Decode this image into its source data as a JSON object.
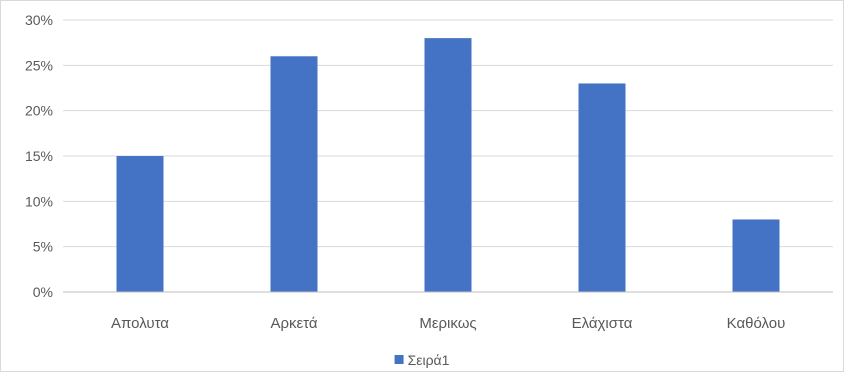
{
  "chart_data": {
    "type": "bar",
    "categories": [
      "Απολυτα",
      "Αρκετά",
      "Μερικως",
      "Ελάχιστα",
      "Καθόλου"
    ],
    "series": [
      {
        "name": "Σειρά1",
        "values": [
          15,
          26,
          28,
          23,
          8
        ],
        "color": "#4472c4"
      }
    ],
    "ylim": [
      0,
      30
    ],
    "yticks": [
      0,
      5,
      10,
      15,
      20,
      25,
      30
    ],
    "ytick_format": "percent",
    "grid": true,
    "legend_position": "bottom"
  }
}
